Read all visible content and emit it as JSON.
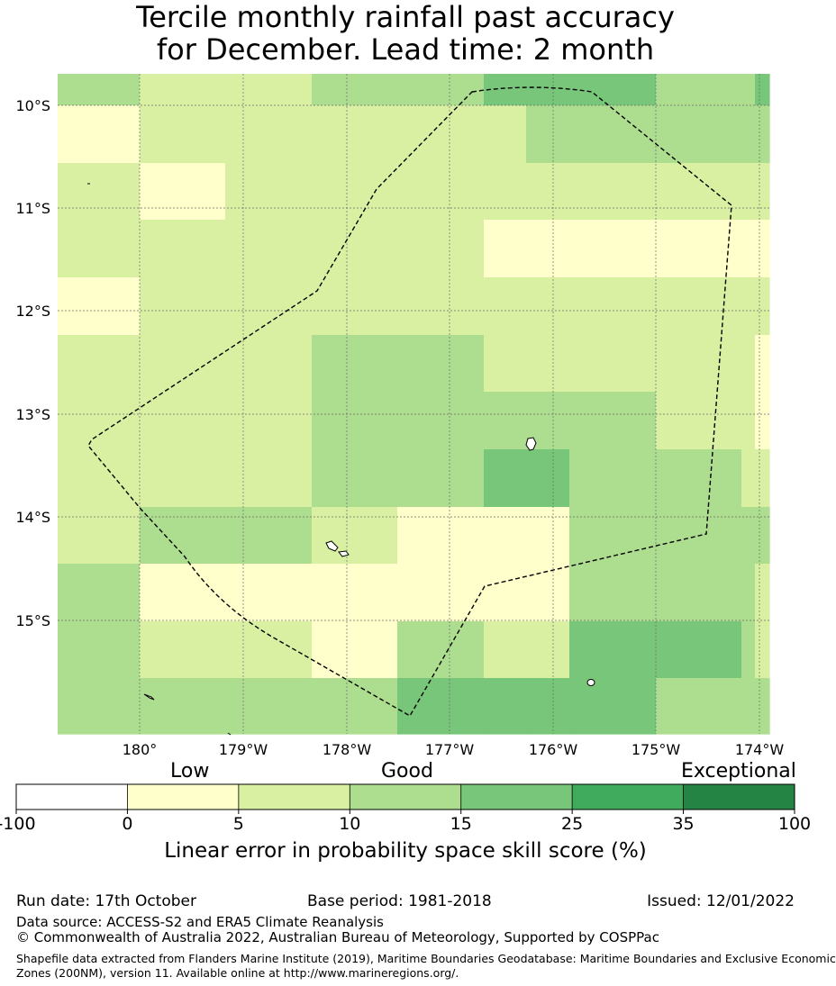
{
  "title": {
    "line1": "Tercile monthly rainfall past accuracy",
    "line2": "for December. Lead time: 2 month"
  },
  "map": {
    "lat_labels": [
      "10°S",
      "11°S",
      "12°S",
      "13°S",
      "14°S",
      "15°S"
    ],
    "lon_labels": [
      "180°",
      "179°W",
      "178°W",
      "177°W",
      "176°W",
      "175°W",
      "174°W"
    ],
    "grid": [
      [
        3,
        3,
        2,
        2,
        3,
        3,
        4,
        4,
        4,
        3,
        3,
        4
      ],
      [
        1,
        1,
        2,
        2,
        2,
        2,
        2,
        3,
        3,
        3,
        3,
        3
      ],
      [
        2,
        2,
        1,
        2,
        2,
        2,
        2,
        2,
        2,
        2,
        2,
        2
      ],
      [
        2,
        2,
        2,
        2,
        2,
        2,
        1,
        1,
        1,
        1,
        1,
        1
      ],
      [
        1,
        1,
        2,
        2,
        2,
        2,
        2,
        2,
        2,
        2,
        2,
        2
      ],
      [
        2,
        2,
        2,
        2,
        3,
        3,
        2,
        2,
        2,
        2,
        2,
        1
      ],
      [
        2,
        2,
        2,
        2,
        3,
        3,
        3,
        3,
        3,
        2,
        2,
        1
      ],
      [
        2,
        2,
        2,
        2,
        3,
        3,
        4,
        4,
        3,
        3,
        2,
        2
      ],
      [
        2,
        2,
        3,
        3,
        2,
        1,
        1,
        1,
        3,
        3,
        3,
        3
      ],
      [
        3,
        3,
        1,
        1,
        1,
        1,
        1,
        1,
        3,
        3,
        3,
        2
      ],
      [
        3,
        3,
        2,
        2,
        1,
        3,
        2,
        2,
        4,
        4,
        3,
        2
      ],
      [
        3,
        3,
        3,
        3,
        3,
        4,
        4,
        4,
        4,
        3,
        3,
        3
      ]
    ]
  },
  "colorbar": {
    "category_labels": {
      "low": "Low",
      "good": "Good",
      "exceptional": "Exceptional"
    },
    "bounds": [
      -100,
      0,
      5,
      10,
      15,
      25,
      35,
      100
    ],
    "tick_labels": [
      "-100",
      "0",
      "5",
      "10",
      "15",
      "25",
      "35",
      "100"
    ],
    "colors": [
      "#ffffff",
      "#ffffcc",
      "#d9f0a3",
      "#addd8e",
      "#78c679",
      "#41ab5d",
      "#238443"
    ],
    "title": "Linear error in probability space skill score (%)"
  },
  "footer": {
    "run_date": "Run date: 17th October",
    "base_period": "Base period: 1981-2018",
    "issued": "Issued: 12/01/2022",
    "data_source": "Data source: ACCESS-S2 and ERA5 Climate Reanalysis",
    "copyright": "© Commonwealth of Australia 2022, Australian Bureau of Meteorology, Supported by COSPPac",
    "shapefile_line1": "Shapefile data extracted from Flanders Marine Institute (2019), Maritime Boundaries Geodatabase: Maritime Boundaries and Exclusive Economic",
    "shapefile_line2": "Zones (200NM), version 11. Available online at http://www.marineregions.org/."
  }
}
